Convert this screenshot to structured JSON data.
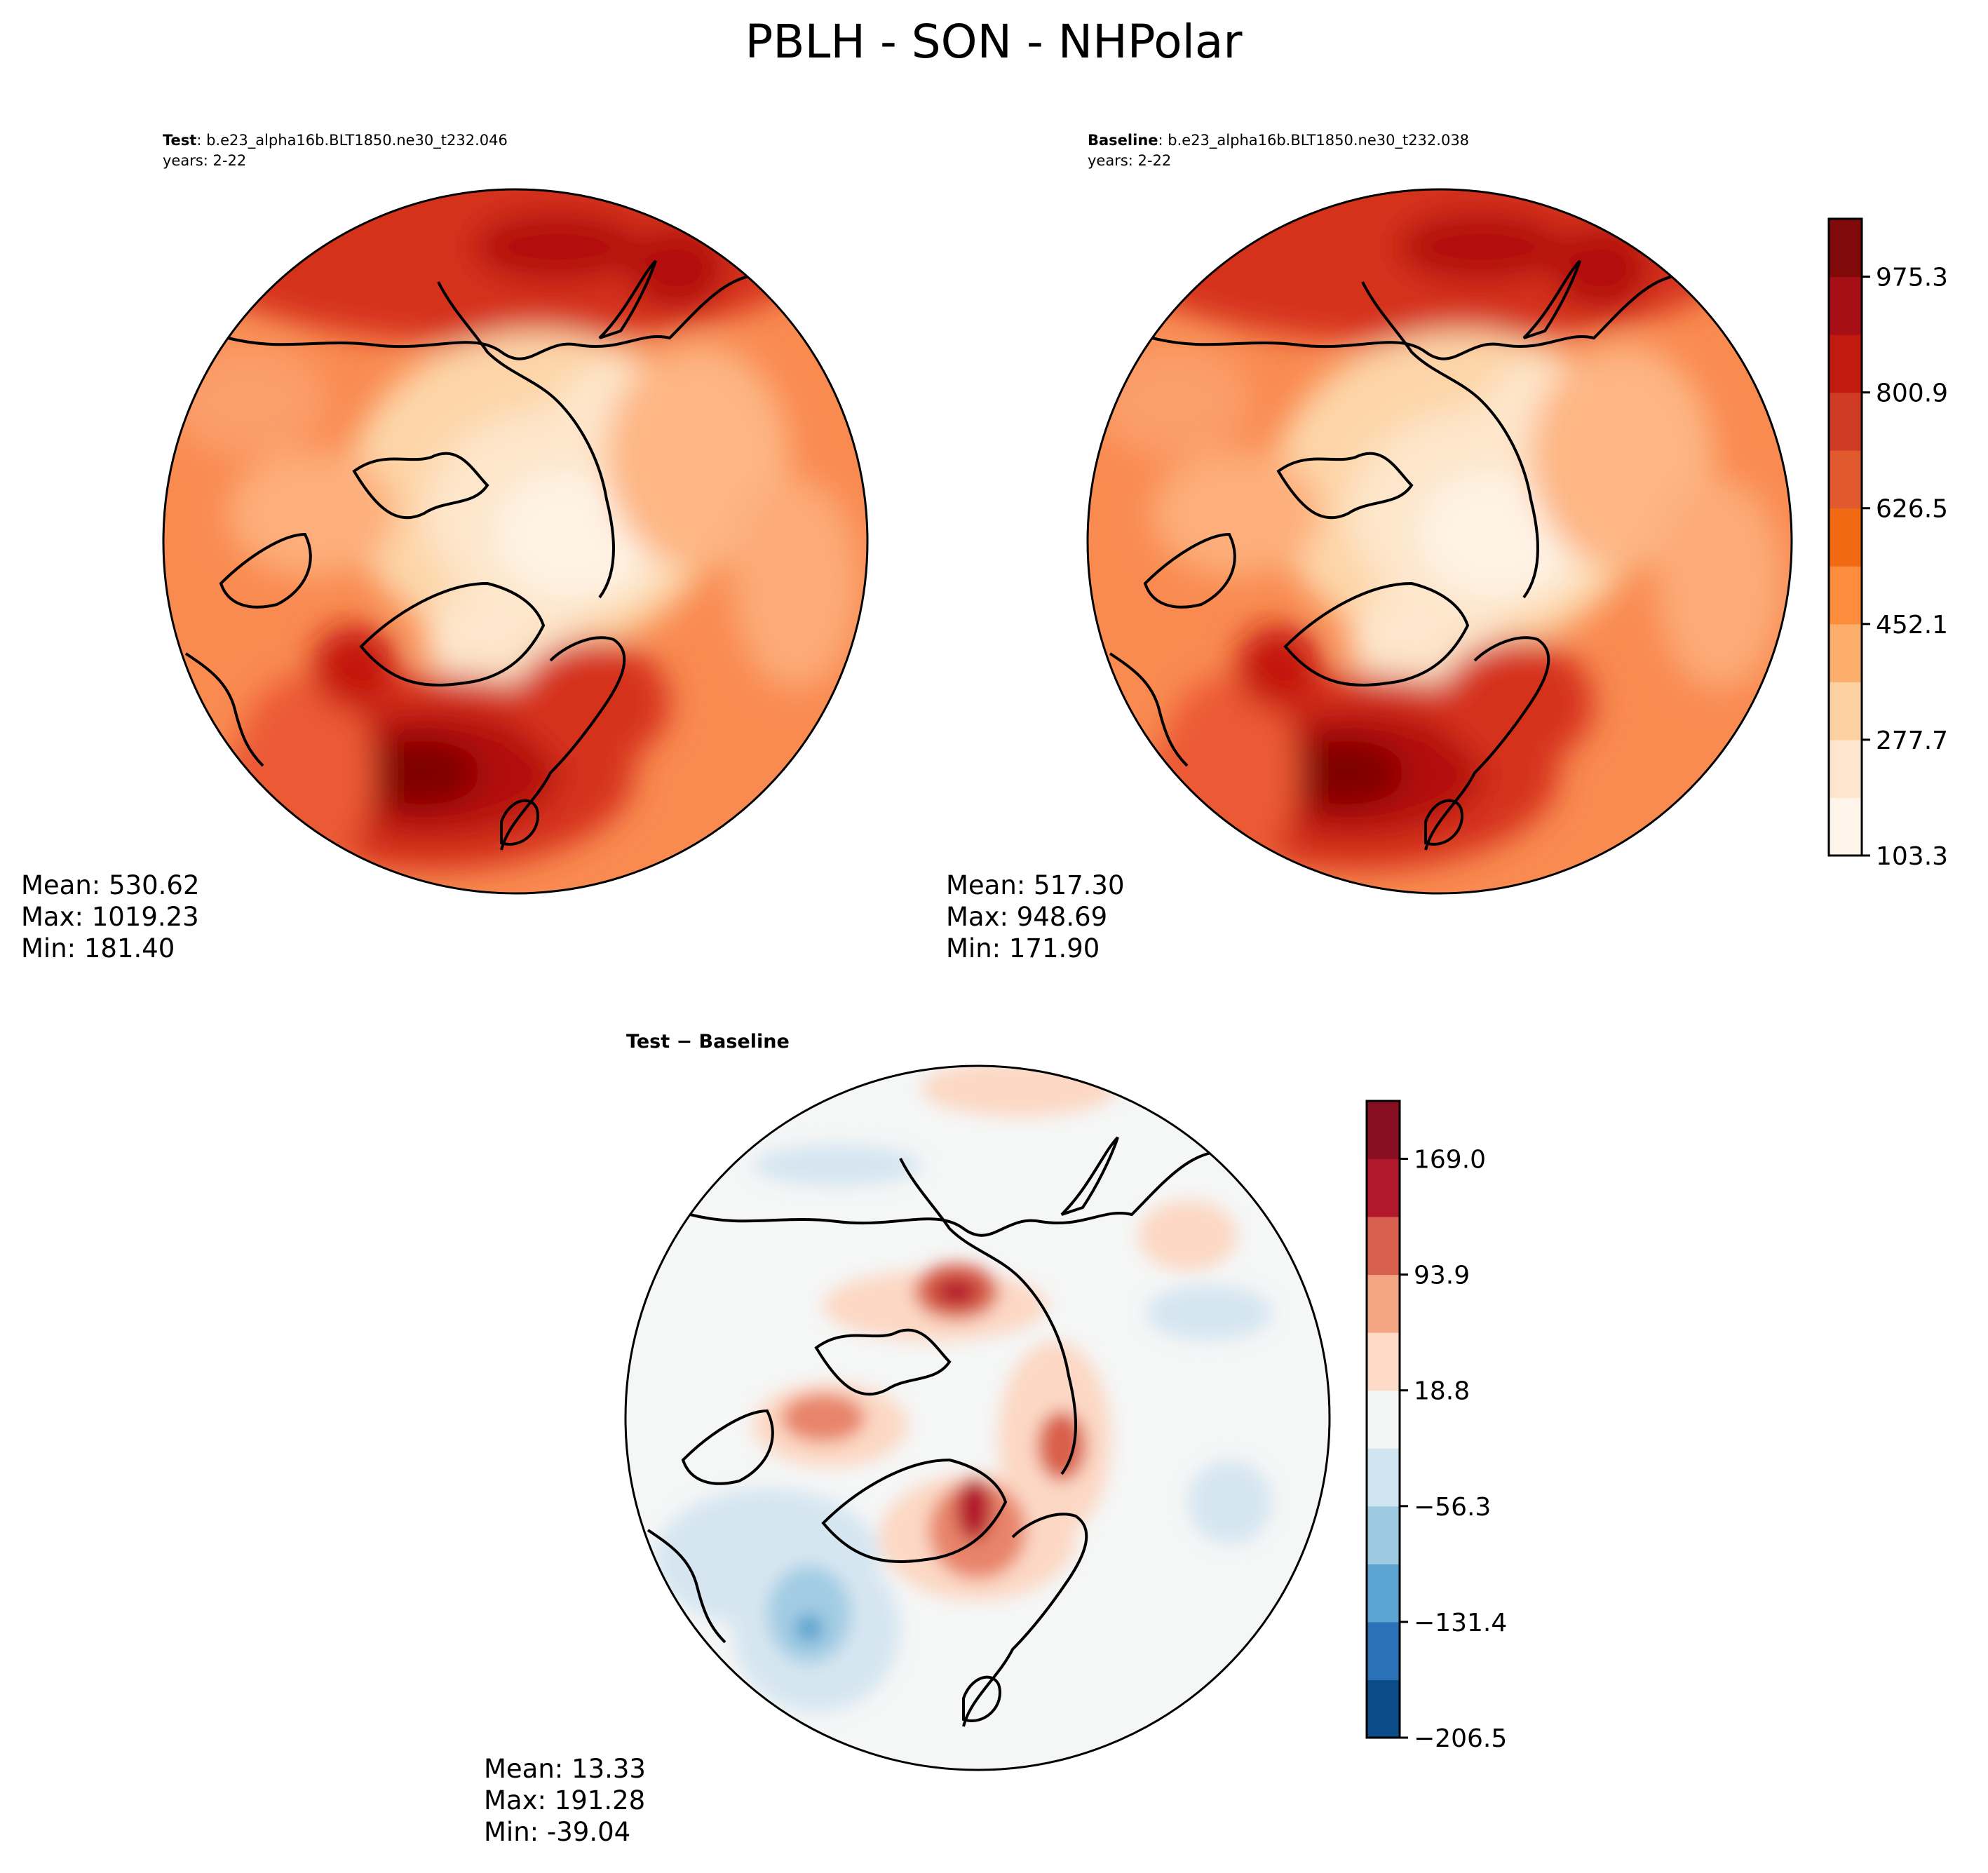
{
  "figure": {
    "title": "PBLH - SON - NHPolar"
  },
  "panels": {
    "test": {
      "label_bold": "Test",
      "case": ": b.e23_alpha16b.BLT1850.ne30_t232.046",
      "years": "years: 2-22",
      "mean": "Mean: 530.62",
      "max": "Max: 1019.23",
      "min": "Min: 181.40"
    },
    "baseline": {
      "label_bold": "Baseline",
      "case": ": b.e23_alpha16b.BLT1850.ne30_t232.038",
      "years": "years: 2-22",
      "mean": "Mean: 517.30",
      "max": "Max: 948.69",
      "min": "Min: 171.90"
    },
    "diff": {
      "label": "Test − Baseline",
      "mean": "Mean: 13.33",
      "max": "Max: 191.28",
      "min": "Min: -39.04"
    }
  },
  "colorbars": {
    "main": {
      "ticks": [
        "103.3",
        "277.7",
        "452.1",
        "626.5",
        "800.9",
        "975.3"
      ],
      "colors": [
        "#fff5eb",
        "#fee6ce",
        "#fdd0a2",
        "#fdae6b",
        "#fd8d3c",
        "#f16913",
        "#e05a2e",
        "#d03b26",
        "#c21a0f",
        "#a50f15",
        "#800a0a"
      ],
      "colormap": "Reds-like sequential"
    },
    "diff": {
      "ticks": [
        "−206.5",
        "−131.4",
        "−56.3",
        "18.8",
        "93.9",
        "169.0"
      ],
      "colors": [
        "#0b4b88",
        "#2c72b8",
        "#5ba3d0",
        "#9ecae1",
        "#d1e5f0",
        "#f4f6f6",
        "#fddbc7",
        "#f4a582",
        "#d6604d",
        "#b2182b",
        "#880f22"
      ],
      "colormap": "RdBu_r diverging"
    }
  },
  "chart_data": [
    {
      "type": "heatmap",
      "title": "Test : b.e23_alpha16b.BLT1850.ne30_t232.046",
      "projection": "north-polar stereographic",
      "stats": {
        "mean": 530.62,
        "max": 1019.23,
        "min": 181.4
      },
      "colorbar_ticks": [
        103.3,
        277.7,
        452.1,
        626.5,
        800.9,
        975.3
      ]
    },
    {
      "type": "heatmap",
      "title": "Baseline : b.e23_alpha16b.BLT1850.ne30_t232.038",
      "projection": "north-polar stereographic",
      "stats": {
        "mean": 517.3,
        "max": 948.69,
        "min": 171.9
      },
      "colorbar_ticks": [
        103.3,
        277.7,
        452.1,
        626.5,
        800.9,
        975.3
      ]
    },
    {
      "type": "heatmap",
      "title": "Test − Baseline",
      "projection": "north-polar stereographic",
      "stats": {
        "mean": 13.33,
        "max": 191.28,
        "min": -39.04
      },
      "colorbar_ticks": [
        -206.5,
        -131.4,
        -56.3,
        18.8,
        93.9,
        169.0
      ]
    }
  ]
}
